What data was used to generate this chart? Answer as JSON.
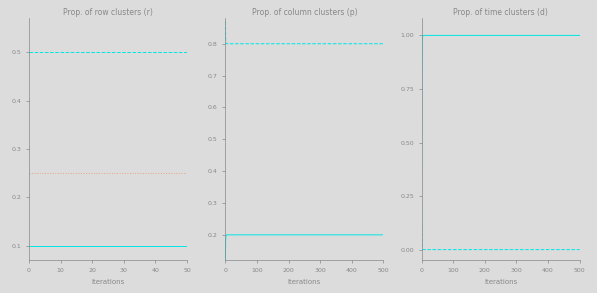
{
  "panel1_title": "Prop. of row clusters (r)",
  "panel2_title": "Prop. of column clusters (p)",
  "panel3_title": "Prop. of time clusters (d)",
  "xlabel": "Iterations",
  "panel1_xlim": [
    0,
    50
  ],
  "panel1_ylim": [
    0.07,
    0.57
  ],
  "panel1_yticks": [
    0.1,
    0.2,
    0.3,
    0.4,
    0.5
  ],
  "panel1_xticks": [
    0,
    10,
    20,
    30,
    40,
    50
  ],
  "panel2_xlim": [
    0,
    500
  ],
  "panel2_ylim": [
    0.12,
    0.88
  ],
  "panel2_yticks": [
    0.2,
    0.3,
    0.4,
    0.5,
    0.6,
    0.7,
    0.8
  ],
  "panel2_xticks": [
    0,
    100,
    200,
    300,
    400,
    500
  ],
  "panel3_xlim": [
    0,
    500
  ],
  "panel3_ylim": [
    -0.05,
    1.08
  ],
  "panel3_yticks": [
    0.0,
    0.25,
    0.5,
    0.75,
    1.0
  ],
  "panel3_xticks": [
    0,
    100,
    200,
    300,
    400,
    500
  ],
  "color_cyan": "#00E5E5",
  "color_orange": "#E8A080",
  "background_color": "#DCDCDC",
  "title_fontsize": 5.5,
  "axis_fontsize": 5,
  "tick_fontsize": 4.5
}
